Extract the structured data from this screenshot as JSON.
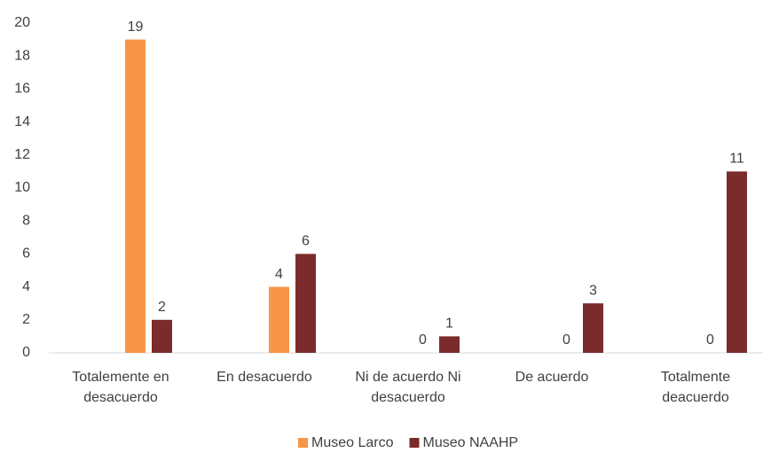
{
  "chart_data": {
    "type": "bar",
    "categories": [
      "Totalemente en desacuerdo",
      "En desacuerdo",
      "Ni de acuerdo Ni desacuerdo",
      "De acuerdo",
      "Totalmente deacuerdo"
    ],
    "series": [
      {
        "name": "Museo Larco",
        "color": "#f79646",
        "values": [
          19,
          4,
          0,
          0,
          0
        ]
      },
      {
        "name": "Museo NAAHP",
        "color": "#7b2b2b",
        "values": [
          2,
          6,
          1,
          3,
          11
        ]
      }
    ],
    "ylim": [
      0,
      20
    ],
    "yticks": [
      0,
      2,
      4,
      6,
      8,
      10,
      12,
      14,
      16,
      18,
      20
    ],
    "legend": "bottom"
  }
}
